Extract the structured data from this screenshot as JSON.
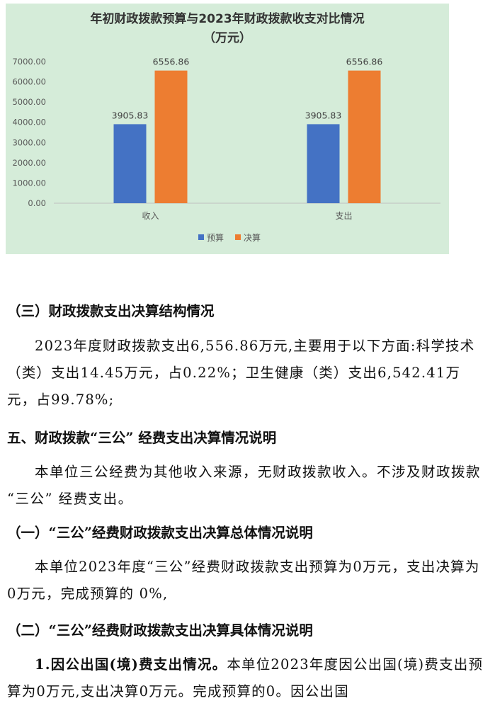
{
  "chart_data": {
    "type": "bar",
    "title": "年初财政拨款预算与2023年财政拨款收支对比情况",
    "subtitle": "（万元）",
    "categories": [
      "收入",
      "支出"
    ],
    "series": [
      {
        "name": "预算",
        "values": [
          3905.83,
          3905.83
        ],
        "color": "#4472c4"
      },
      {
        "name": "决算",
        "values": [
          6556.86,
          6556.86
        ],
        "color": "#ed7d31"
      }
    ],
    "value_labels": [
      [
        "3905.83",
        "3905.83"
      ],
      [
        "6556.86",
        "6556.86"
      ]
    ],
    "yticks": [
      "0.00",
      "1000.00",
      "2000.00",
      "3000.00",
      "4000.00",
      "5000.00",
      "6000.00",
      "7000.00"
    ],
    "ylim": [
      0,
      7000
    ],
    "grid": false,
    "legend_position": "bottom"
  },
  "sections": {
    "h3": "（三）财政拨款支出决算结构情况",
    "p1": "2023年度财政拨款支出6,556.86万元,主要用于以下方面:科学技术（类）支出14.45万元，占0.22%；卫生健康（类）支出6,542.41万元，占99.78%;",
    "h5": "五、财政拨款“三公” 经费支出决算情况说明",
    "p2": "本单位三公经费为其他收入来源，无财政拨款收入。不涉及财政拨款 “三公” 经费支出。",
    "h1": "（一）“三公”经费财政拨款支出决算总体情况说明",
    "p3": "本单位2023年度“三公”经费财政拨款支出预算为0万元，支出决算为 0万元，完成预算的 0%,",
    "h2": "（二）“三公”经费财政拨款支出决算具体情况说明",
    "p4_lead": "1.因公出国(境)费支出情况。",
    "p4_rest": "本单位2023年度因公出国(境)费支出预算为0万元,支出决算0万元。完成预算的0。因公出国"
  }
}
